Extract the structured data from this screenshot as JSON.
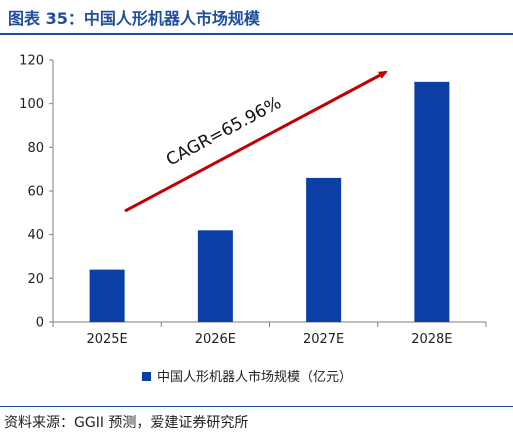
{
  "header": {
    "title": "图表 35：中国人形机器人市场规模"
  },
  "footer": {
    "source": "资料来源：GGII 预测，爱建证券研究所"
  },
  "colors": {
    "title": "#1f4e9c",
    "bar": "#0b3fa6",
    "arrow": "#c00000",
    "axis": "#7f7f7f"
  },
  "chart_data": {
    "type": "bar",
    "categories": [
      "2025E",
      "2026E",
      "2027E",
      "2028E"
    ],
    "series": [
      {
        "name": "中国人形机器人市场规模（亿元）",
        "values": [
          24,
          42,
          66,
          110
        ]
      }
    ],
    "ylim": [
      0,
      120
    ],
    "yticks": [
      0,
      20,
      40,
      60,
      80,
      100,
      120
    ],
    "grid": false,
    "legend_position": "bottom",
    "annotation": "CAGR=65.96%"
  }
}
